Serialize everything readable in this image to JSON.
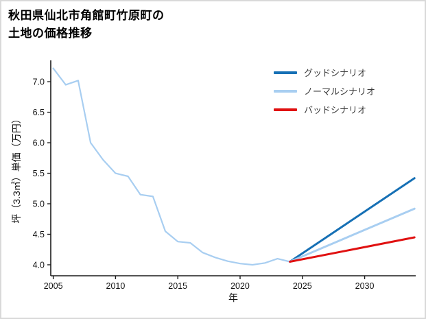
{
  "title_lines": [
    "秋田県仙北市角館町竹原町の",
    "土地の価格推移"
  ],
  "chart_data": {
    "type": "line",
    "title": "秋田県仙北市角館町竹原町の土地の価格推移",
    "xlabel": "年",
    "ylabel": "坪（3.3㎡）単価（万円）",
    "xlim": [
      2004.8,
      2034.1
    ],
    "ylim": [
      3.82,
      7.35
    ],
    "x_ticks": [
      2005,
      2010,
      2015,
      2020,
      2025,
      2030
    ],
    "x_tick_labels": [
      "2005",
      "2010",
      "2015",
      "2020",
      "2025",
      "2030"
    ],
    "y_ticks": [
      4.0,
      4.5,
      5.0,
      5.5,
      6.0,
      6.5,
      7.0
    ],
    "y_tick_labels": [
      "4.0",
      "4.5",
      "5.0",
      "5.5",
      "6.0",
      "6.5",
      "7.0"
    ],
    "grid": false,
    "legend_position": "upper right",
    "colors": {
      "good": "#1670b5",
      "normal": "#a8cef1",
      "bad": "#e01111",
      "axis": "#1a1a1a"
    },
    "series": [
      {
        "key": "history",
        "name": "history",
        "color": "#a8cef1",
        "width": 2.2,
        "x": [
          2005,
          2006,
          2007,
          2008,
          2009,
          2010,
          2011,
          2012,
          2013,
          2014,
          2015,
          2016,
          2017,
          2018,
          2019,
          2020,
          2021,
          2022,
          2023,
          2024
        ],
        "y": [
          7.22,
          6.95,
          7.02,
          6.0,
          5.72,
          5.5,
          5.45,
          5.15,
          5.12,
          4.55,
          4.38,
          4.36,
          4.2,
          4.12,
          4.06,
          4.02,
          4.0,
          4.03,
          4.1,
          4.05
        ]
      },
      {
        "key": "good",
        "name": "グッドシナリオ",
        "color": "#1670b5",
        "width": 3,
        "x": [
          2024,
          2034
        ],
        "y": [
          4.05,
          5.42
        ]
      },
      {
        "key": "normal",
        "name": "ノーマルシナリオ",
        "color": "#a8cef1",
        "width": 3,
        "x": [
          2024,
          2034
        ],
        "y": [
          4.05,
          4.92
        ]
      },
      {
        "key": "bad",
        "name": "バッドシナリオ",
        "color": "#e01111",
        "width": 3,
        "x": [
          2024,
          2034
        ],
        "y": [
          4.05,
          4.45
        ]
      }
    ],
    "legend": [
      {
        "label": "グッドシナリオ",
        "color": "#1670b5"
      },
      {
        "label": "ノーマルシナリオ",
        "color": "#a8cef1"
      },
      {
        "label": "バッドシナリオ",
        "color": "#e01111"
      }
    ]
  }
}
